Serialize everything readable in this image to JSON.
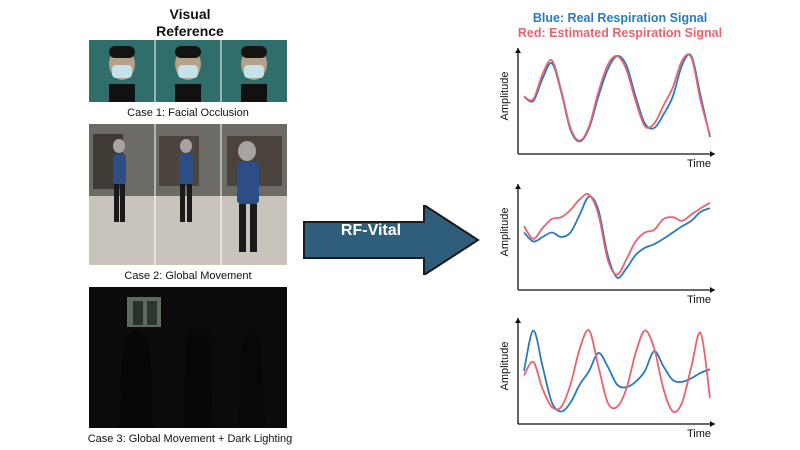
{
  "visual_reference": {
    "title": "Visual\nReference",
    "title_line1": "Visual",
    "title_line2": "Reference"
  },
  "cases": [
    {
      "caption": "Case 1: Facial Occlusion"
    },
    {
      "caption": "Case 2: Global Movement"
    },
    {
      "caption": "Case 3: Global Movement + Dark Lighting"
    }
  ],
  "arrow": {
    "label": "RF-Vital",
    "color": "#2f5d7c"
  },
  "legend": {
    "blue": "Blue: Real Respiration Signal",
    "red": "Red: Estimated Respiration Signal",
    "blue_color": "#2b7bba",
    "red_color": "#e8636f"
  },
  "chart_data": [
    {
      "type": "line",
      "xlabel": "Time",
      "ylabel": "Amplitude",
      "grid": false,
      "series": [
        {
          "name": "Real Respiration Signal",
          "color": "#2b7bba",
          "x": [
            0,
            0.05,
            0.1,
            0.15,
            0.2,
            0.25,
            0.3,
            0.35,
            0.4,
            0.45,
            0.5,
            0.55,
            0.6,
            0.65,
            0.7,
            0.75,
            0.8,
            0.85,
            0.9,
            0.95,
            1
          ],
          "y": [
            0.55,
            0.5,
            0.75,
            0.92,
            0.6,
            0.18,
            0.05,
            0.2,
            0.55,
            0.85,
            1.0,
            0.9,
            0.55,
            0.25,
            0.2,
            0.35,
            0.55,
            0.9,
            1.0,
            0.55,
            0.1
          ]
        },
        {
          "name": "Estimated Respiration Signal",
          "color": "#e8636f",
          "x": [
            0,
            0.05,
            0.1,
            0.15,
            0.2,
            0.25,
            0.3,
            0.35,
            0.4,
            0.45,
            0.5,
            0.55,
            0.6,
            0.65,
            0.7,
            0.75,
            0.8,
            0.85,
            0.9,
            0.95,
            1
          ],
          "y": [
            0.55,
            0.52,
            0.8,
            0.95,
            0.62,
            0.2,
            0.06,
            0.22,
            0.6,
            0.9,
            1.0,
            0.85,
            0.5,
            0.22,
            0.25,
            0.45,
            0.65,
            0.95,
            0.98,
            0.5,
            0.12
          ]
        }
      ]
    },
    {
      "type": "line",
      "xlabel": "Time",
      "ylabel": "Amplitude",
      "grid": false,
      "series": [
        {
          "name": "Real Respiration Signal",
          "color": "#2b7bba",
          "x": [
            0,
            0.05,
            0.1,
            0.15,
            0.2,
            0.25,
            0.3,
            0.35,
            0.4,
            0.45,
            0.5,
            0.55,
            0.6,
            0.65,
            0.7,
            0.75,
            0.8,
            0.85,
            0.9,
            0.95,
            1
          ],
          "y": [
            0.55,
            0.45,
            0.5,
            0.55,
            0.5,
            0.55,
            0.75,
            0.95,
            0.8,
            0.3,
            0.05,
            0.15,
            0.3,
            0.38,
            0.42,
            0.48,
            0.55,
            0.62,
            0.68,
            0.78,
            0.82
          ]
        },
        {
          "name": "Estimated Respiration Signal",
          "color": "#e8636f",
          "x": [
            0,
            0.05,
            0.1,
            0.15,
            0.2,
            0.25,
            0.3,
            0.35,
            0.4,
            0.45,
            0.5,
            0.55,
            0.6,
            0.65,
            0.7,
            0.75,
            0.8,
            0.85,
            0.9,
            0.95,
            1
          ],
          "y": [
            0.62,
            0.48,
            0.6,
            0.7,
            0.72,
            0.8,
            0.92,
            0.97,
            0.75,
            0.25,
            0.08,
            0.25,
            0.45,
            0.55,
            0.58,
            0.7,
            0.72,
            0.68,
            0.75,
            0.82,
            0.88
          ]
        }
      ]
    },
    {
      "type": "line",
      "xlabel": "Time",
      "ylabel": "Amplitude",
      "grid": false,
      "series": [
        {
          "name": "Real Respiration Signal",
          "color": "#2b7bba",
          "x": [
            0,
            0.05,
            0.1,
            0.15,
            0.2,
            0.25,
            0.3,
            0.35,
            0.4,
            0.45,
            0.5,
            0.55,
            0.6,
            0.65,
            0.7,
            0.75,
            0.8,
            0.85,
            0.9,
            0.95,
            1
          ],
          "y": [
            0.5,
            0.95,
            0.55,
            0.15,
            0.05,
            0.15,
            0.35,
            0.5,
            0.7,
            0.55,
            0.35,
            0.32,
            0.38,
            0.5,
            0.72,
            0.55,
            0.4,
            0.38,
            0.42,
            0.48,
            0.52
          ]
        },
        {
          "name": "Estimated Respiration Signal",
          "color": "#e8636f",
          "x": [
            0,
            0.05,
            0.1,
            0.15,
            0.2,
            0.25,
            0.3,
            0.35,
            0.4,
            0.45,
            0.5,
            0.55,
            0.6,
            0.65,
            0.7,
            0.75,
            0.8,
            0.85,
            0.9,
            0.95,
            1
          ],
          "y": [
            0.45,
            0.6,
            0.3,
            0.1,
            0.1,
            0.35,
            0.75,
            0.95,
            0.55,
            0.15,
            0.1,
            0.3,
            0.7,
            0.95,
            0.75,
            0.3,
            0.05,
            0.15,
            0.55,
            0.92,
            0.2
          ]
        }
      ]
    }
  ]
}
